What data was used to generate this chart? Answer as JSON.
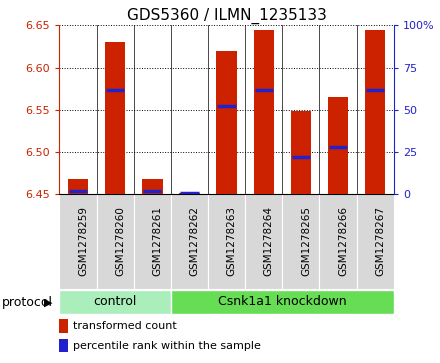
{
  "title": "GDS5360 / ILMN_1235133",
  "samples": [
    "GSM1278259",
    "GSM1278260",
    "GSM1278261",
    "GSM1278262",
    "GSM1278263",
    "GSM1278264",
    "GSM1278265",
    "GSM1278266",
    "GSM1278267"
  ],
  "transformed_count": [
    6.468,
    6.63,
    6.468,
    6.452,
    6.62,
    6.645,
    6.548,
    6.565,
    6.645
  ],
  "percentile_rank": [
    0.02,
    0.62,
    0.02,
    0.005,
    0.52,
    0.62,
    0.22,
    0.28,
    0.62
  ],
  "bar_bottom": 6.45,
  "ylim_left": [
    6.45,
    6.65
  ],
  "ylim_right": [
    0,
    100
  ],
  "yticks_left": [
    6.45,
    6.5,
    6.55,
    6.6,
    6.65
  ],
  "yticks_right": [
    0,
    25,
    50,
    75,
    100
  ],
  "ytick_labels_right": [
    "0",
    "25",
    "50",
    "75",
    "100%"
  ],
  "bar_color": "#cc2200",
  "percentile_color": "#2222cc",
  "grid_color": "#000000",
  "bg_color": "#ffffff",
  "sample_bg_color": "#d8d8d8",
  "protocol_groups": [
    {
      "label": "control",
      "start": 0,
      "end": 3,
      "color": "#aaeebb"
    },
    {
      "label": "Csnk1a1 knockdown",
      "start": 3,
      "end": 9,
      "color": "#66dd55"
    }
  ],
  "protocol_label": "protocol",
  "legend_items": [
    {
      "label": "transformed count",
      "color": "#cc2200"
    },
    {
      "label": "percentile rank within the sample",
      "color": "#2222cc"
    }
  ],
  "bar_width": 0.55,
  "left_axis_color": "#cc2200",
  "right_axis_color": "#2222cc",
  "title_fontsize": 11,
  "tick_fontsize": 8,
  "sample_fontsize": 7.5,
  "proto_fontsize": 9,
  "legend_fontsize": 8
}
